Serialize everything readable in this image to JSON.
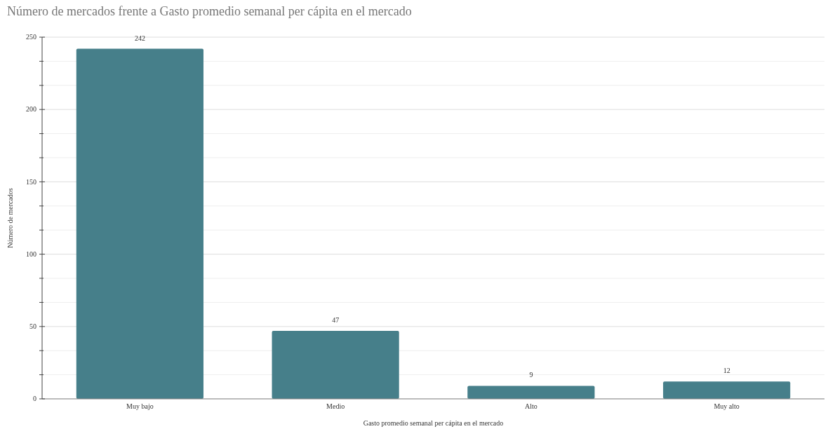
{
  "chart_data": {
    "type": "bar",
    "title": "Número de mercados frente a Gasto promedio semanal per cápita en el mercado",
    "xlabel": "Gasto promedio semanal per cápita en el mercado",
    "ylabel": "Número de mercados",
    "categories": [
      "Muy bajo",
      "Medio",
      "Alto",
      "Muy alto"
    ],
    "values": [
      242,
      47,
      9,
      12
    ],
    "color": "#467f8a",
    "ylim": [
      0,
      250
    ],
    "yticks": [
      0,
      {
        "value": 16.67,
        "label": null
      },
      {
        "value": 33.33,
        "label": null
      },
      50,
      {
        "value": 66.67,
        "label": null
      },
      {
        "value": 83.33,
        "label": null
      },
      100,
      {
        "value": 116.67,
        "label": null
      },
      {
        "value": 133.33,
        "label": null
      },
      150,
      {
        "value": 166.67,
        "label": null
      },
      {
        "value": 183.33,
        "label": null
      },
      200,
      {
        "value": 216.67,
        "label": null
      },
      {
        "value": 233.33,
        "label": null
      },
      250
    ],
    "grid": true,
    "data_labels": true
  }
}
